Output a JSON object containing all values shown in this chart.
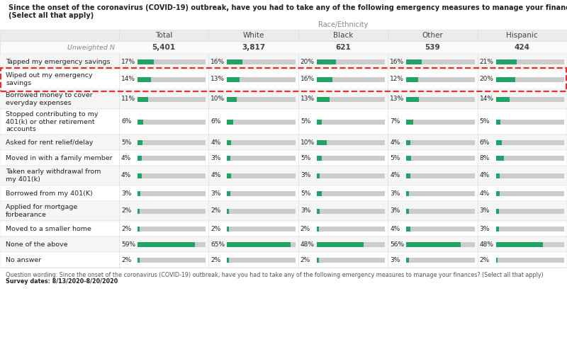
{
  "title_line1": "Since the onset of the coronavirus (COVID-19) outbreak, have you had to take any of the following emergency measures to manage your finances?",
  "title_line2": "(Select all that apply)",
  "subtitle": "Race/Ethnicity",
  "columns": [
    "Total",
    "White",
    "Black",
    "Other",
    "Hispanic"
  ],
  "unweighted_n": [
    "5,401",
    "3,817",
    "621",
    "539",
    "424"
  ],
  "rows": [
    {
      "label": "Tapped my emergency savings",
      "values": [
        17,
        16,
        20,
        16,
        21
      ],
      "highlight": false,
      "lines": 1
    },
    {
      "label": "Wiped out my emergency\nsavings",
      "values": [
        14,
        13,
        16,
        12,
        20
      ],
      "highlight": true,
      "lines": 2
    },
    {
      "label": "Borrowed money to cover\neveryday expenses",
      "values": [
        11,
        10,
        13,
        13,
        14
      ],
      "highlight": false,
      "lines": 2
    },
    {
      "label": "Stopped contributing to my\n401(k) or other retirement\naccounts",
      "values": [
        6,
        6,
        5,
        7,
        5
      ],
      "highlight": false,
      "lines": 3
    },
    {
      "label": "Asked for rent relief/delay",
      "values": [
        5,
        4,
        10,
        4,
        6
      ],
      "highlight": false,
      "lines": 1
    },
    {
      "label": "Moved in with a family member",
      "values": [
        4,
        3,
        5,
        5,
        8
      ],
      "highlight": false,
      "lines": 1
    },
    {
      "label": "Taken early withdrawal from\nmy 401(k)",
      "values": [
        4,
        4,
        3,
        4,
        4
      ],
      "highlight": false,
      "lines": 2
    },
    {
      "label": "Borrowed from my 401(K)",
      "values": [
        3,
        3,
        5,
        3,
        4
      ],
      "highlight": false,
      "lines": 1
    },
    {
      "label": "Applied for mortgage\nforbearance",
      "values": [
        2,
        2,
        3,
        3,
        3
      ],
      "highlight": false,
      "lines": 2
    },
    {
      "label": "Moved to a smaller home",
      "values": [
        2,
        2,
        2,
        4,
        3
      ],
      "highlight": false,
      "lines": 1
    },
    {
      "label": "None of the above",
      "values": [
        59,
        65,
        48,
        56,
        48
      ],
      "highlight": false,
      "lines": 1
    },
    {
      "label": "No answer",
      "values": [
        2,
        2,
        2,
        3,
        2
      ],
      "highlight": false,
      "lines": 1
    }
  ],
  "bar_max": 70,
  "green_color": "#21a366",
  "gray_color": "#cccccc",
  "bg_color": "#ffffff",
  "header_bg": "#ebebeb",
  "alt_row_bg": "#f5f5f5",
  "text_color": "#222222",
  "label_color": "#444444",
  "meta_color": "#888888",
  "div_color": "#dddddd",
  "highlight_border": "#e03030",
  "footer_q": "Question wording: Since the onset of the coronavirus (COVID-19) outbreak, have you had to take any of the following emergency measures to manage your finances? (Select all that apply)",
  "footer_dates": "Survey dates: 8/13/2020-8/20/2020"
}
